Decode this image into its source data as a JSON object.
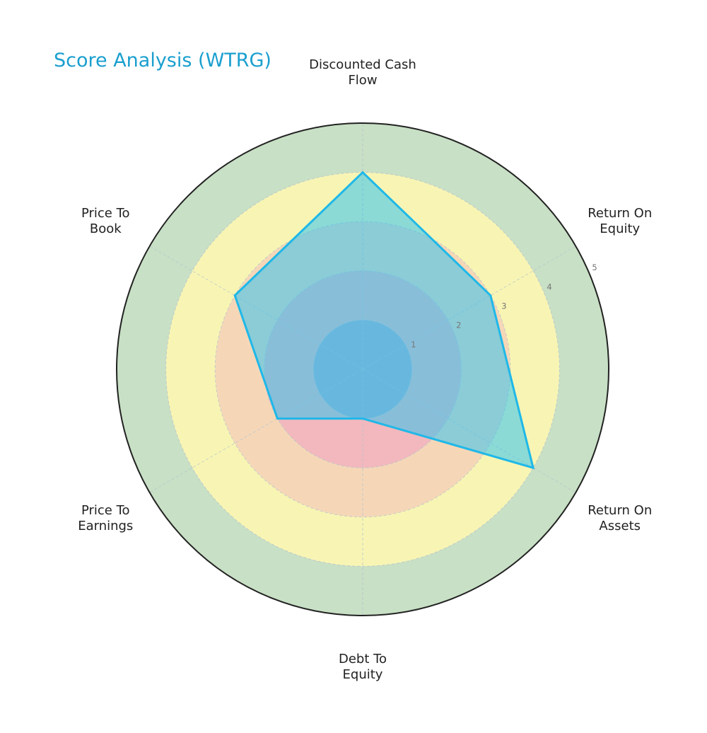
{
  "chart_data": {
    "type": "radar",
    "title": "Score Analysis (WTRG)",
    "axes": [
      [
        "Discounted Cash",
        "Flow"
      ],
      [
        "Return On",
        "Equity"
      ],
      [
        "Return On",
        "Assets"
      ],
      [
        "Debt To",
        "Equity"
      ],
      [
        "Price To",
        "Earnings"
      ],
      [
        "Price To",
        "Book"
      ]
    ],
    "series": [
      {
        "values": [
          4,
          3,
          4,
          1,
          2,
          3
        ]
      }
    ],
    "rlim": [
      0,
      5
    ],
    "rticks": [
      "1",
      "2",
      "3",
      "4",
      "5"
    ],
    "zones": [
      {
        "from": 0,
        "to": 1,
        "color": "#a9a9c9"
      },
      {
        "from": 1,
        "to": 2,
        "color": "#f2b8bd"
      },
      {
        "from": 2,
        "to": 3,
        "color": "#f5d7b8"
      },
      {
        "from": 3,
        "to": 4,
        "color": "#f8f5b4"
      },
      {
        "from": 4,
        "to": 5,
        "color": "#c8e0c5"
      }
    ],
    "colors": {
      "line": "#1fb8e8",
      "fill": "#33c3f0",
      "title": "#1a9fcf",
      "outer_ring": "#222222",
      "grid": "#b8c4cc"
    }
  }
}
